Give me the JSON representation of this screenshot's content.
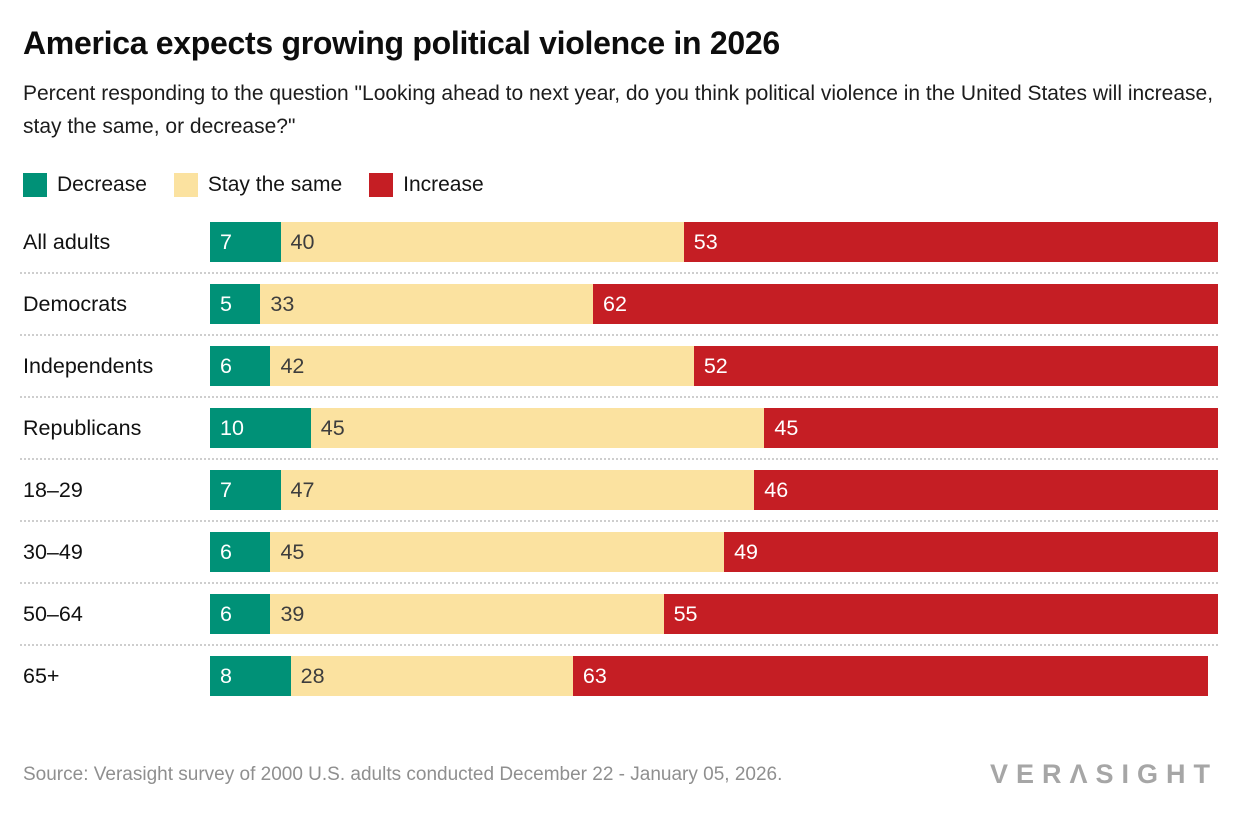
{
  "header": {
    "title": "America expects growing political violence in 2026",
    "subtitle": "Percent responding to the question \"Looking ahead to next year, do you think political violence in the United States will increase, stay the same, or decrease?\""
  },
  "chart_data": {
    "type": "bar",
    "stacked": true,
    "orientation": "horizontal",
    "title": "America expects growing political violence in 2026",
    "categories": [
      "All adults",
      "Democrats",
      "Independents",
      "Republicans",
      "18–29",
      "30–49",
      "50–64",
      "65+"
    ],
    "series": [
      {
        "name": "Decrease",
        "color": "#009177",
        "label_color": "#ffffff",
        "values": [
          7,
          5,
          6,
          10,
          7,
          6,
          6,
          8
        ]
      },
      {
        "name": "Stay the same",
        "color": "#FBE2A0",
        "label_color": "#3d3d3d",
        "values": [
          40,
          33,
          42,
          45,
          47,
          45,
          39,
          28
        ]
      },
      {
        "name": "Increase",
        "color": "#C51E24",
        "label_color": "#ffffff",
        "values": [
          53,
          62,
          52,
          45,
          46,
          49,
          55,
          63
        ]
      }
    ],
    "xlim": [
      0,
      100
    ],
    "unit": "percent",
    "legend_position": "top",
    "grid": false,
    "row_separator": "dotted"
  },
  "footer": {
    "source": "Source: Verasight survey of 2000 U.S. adults conducted December 22 - January 05, 2026.",
    "logo": "VERΛSIGHT"
  }
}
